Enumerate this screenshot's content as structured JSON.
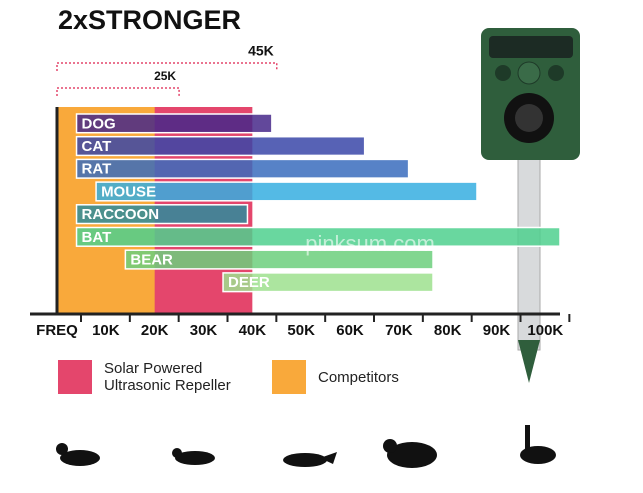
{
  "chart_data": {
    "type": "range-bar",
    "title": "2xSTRONGER",
    "watermark": "pinksum.com",
    "categories": [
      "DOG",
      "CAT",
      "RAT",
      "MOUSE",
      "RACCOON",
      "BAT",
      "BEAR",
      "DEER"
    ],
    "start": [
      4,
      4,
      4,
      8,
      4,
      4,
      14,
      34
    ],
    "end": [
      44,
      63,
      72,
      86,
      39,
      103,
      77,
      77
    ],
    "colors": [
      "#47288a",
      "#3a46a8",
      "#3a6cbd",
      "#36aee0",
      "#2d8c9c",
      "#4fd08e",
      "#6ccf7d",
      "#9ee08e"
    ],
    "series": [
      {
        "name": "Solar Powered Ultrasonic Repeller",
        "color": "#e4466c",
        "value": 40
      },
      {
        "name": "Competitors",
        "color": "#f9a93b",
        "value": 20
      }
    ],
    "annotations": [
      {
        "value": 45,
        "label": "45K"
      },
      {
        "value": 25,
        "label": "25K"
      }
    ],
    "xlim": [
      0,
      103
    ],
    "xticks": [
      {
        "value": 0,
        "label": "FREQ"
      },
      {
        "value": 10,
        "label": "10K"
      },
      {
        "value": 20,
        "label": "20K"
      },
      {
        "value": 30,
        "label": "30K"
      },
      {
        "value": 40,
        "label": "40K"
      },
      {
        "value": 50,
        "label": "50K"
      },
      {
        "value": 60,
        "label": "60K"
      },
      {
        "value": 70,
        "label": "70K"
      },
      {
        "value": 80,
        "label": "80K"
      },
      {
        "value": 90,
        "label": "90K"
      },
      {
        "value": 100,
        "label": "100K"
      }
    ]
  }
}
